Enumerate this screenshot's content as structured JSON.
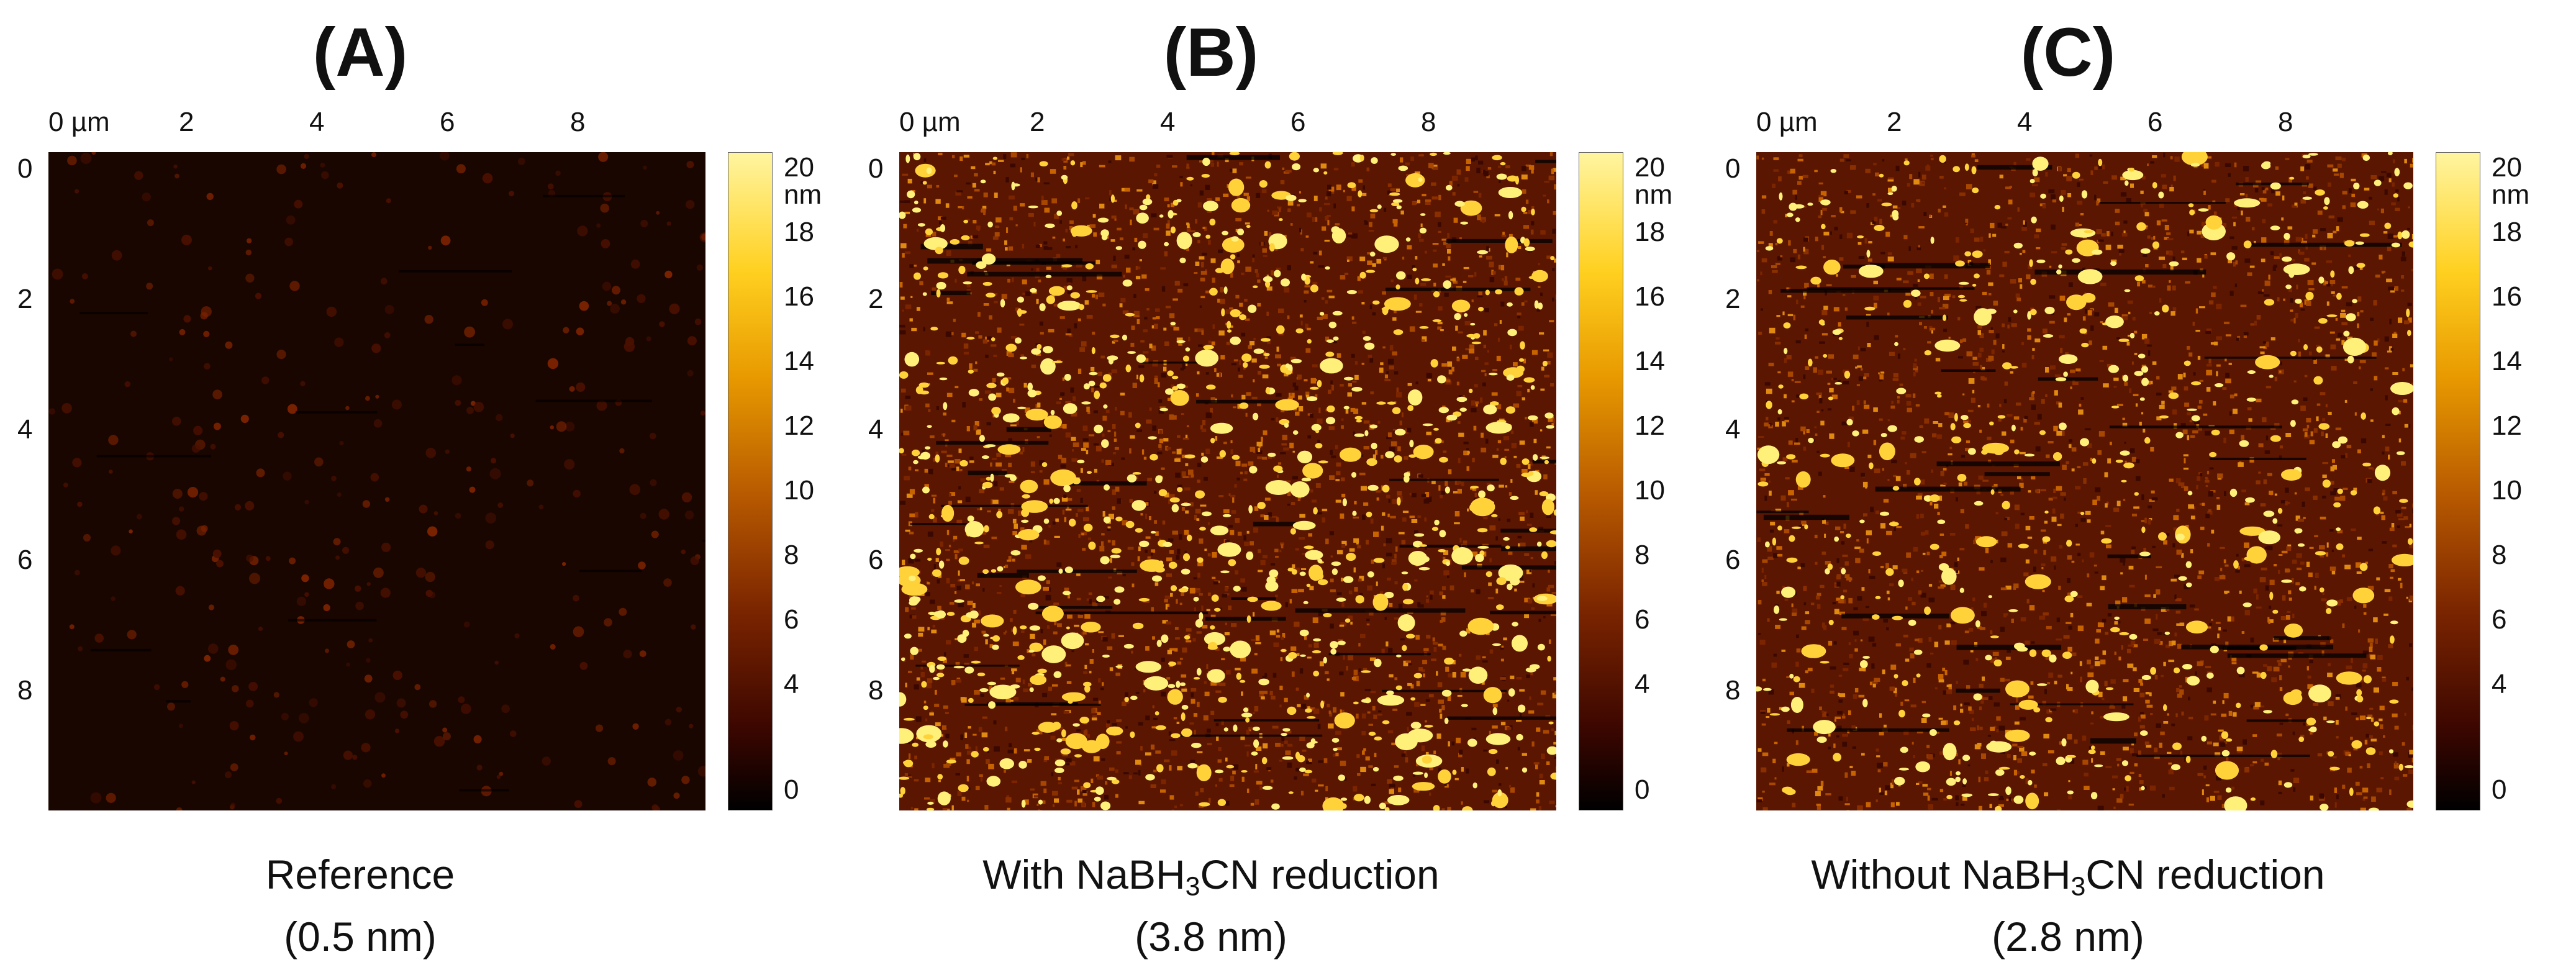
{
  "colorbar": {
    "ticks": [
      "20 nm",
      "18",
      "16",
      "14",
      "12",
      "10",
      "8",
      "6",
      "4",
      "0"
    ]
  },
  "axes": {
    "x_ticks": [
      "0 µm",
      "2",
      "4",
      "6",
      "8"
    ],
    "y_ticks": [
      "0",
      "2",
      "4",
      "6",
      "8"
    ]
  },
  "panels": [
    {
      "label": "(A)",
      "caption_line1": "Reference",
      "caption_line2": "(0.5 nm)"
    },
    {
      "label": "(B)",
      "caption_before": "With NaBH",
      "caption_sub": "3",
      "caption_after": "CN reduction",
      "caption_line2": "(3.8 nm)"
    },
    {
      "label": "(C)",
      "caption_before": "Without NaBH",
      "caption_sub": "3",
      "caption_after": "CN reduction",
      "caption_line2": "(2.8 nm)"
    }
  ],
  "colors": {
    "ref_background": "#1a0600",
    "rough_background": "#5a1600",
    "grain_bright": "#ffd23a",
    "grain_mid": "#c86400"
  }
}
